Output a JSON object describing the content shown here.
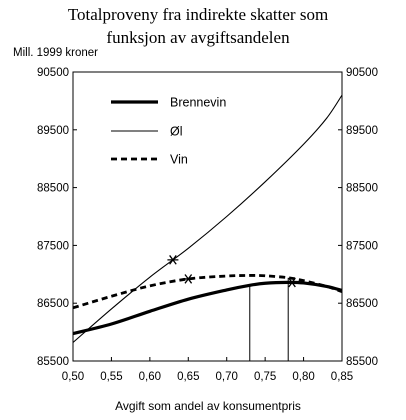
{
  "chart_data": {
    "type": "line",
    "title_lines": [
      "Totalproveny fra indirekte skatter som",
      "funksjon av avgiftsandelen"
    ],
    "ylabel": "Mill. 1999 kroner",
    "xlabel": "Avgift som andel av konsumentpris",
    "xlim": [
      0.5,
      0.85
    ],
    "ylim": [
      85500,
      90500
    ],
    "x_ticks": [
      "0,50",
      "0,55",
      "0,60",
      "0,65",
      "0,70",
      "0,75",
      "0,80",
      "0,85"
    ],
    "y_ticks": [
      "85500",
      "86500",
      "87500",
      "88500",
      "89500",
      "90500"
    ],
    "legend_position": "top-left",
    "series": [
      {
        "name": "Brennevin",
        "style": "thick",
        "x": [
          0.5,
          0.55,
          0.6,
          0.65,
          0.7,
          0.73,
          0.75,
          0.78,
          0.8,
          0.83,
          0.85
        ],
        "y": [
          85975,
          86140,
          86360,
          86570,
          86730,
          86810,
          86845,
          86860,
          86850,
          86790,
          86720
        ],
        "marker_x": 0.785,
        "drop_line_x": 0.73
      },
      {
        "name": "Øl",
        "style": "thin",
        "x": [
          0.5,
          0.55,
          0.6,
          0.65,
          0.7,
          0.75,
          0.8,
          0.83,
          0.85
        ],
        "y": [
          85820,
          86400,
          86950,
          87450,
          88000,
          88600,
          89250,
          89700,
          90100
        ],
        "marker_x": 0.63
      },
      {
        "name": "Vin",
        "style": "dashed",
        "x": [
          0.5,
          0.55,
          0.6,
          0.65,
          0.7,
          0.73,
          0.75,
          0.78,
          0.8,
          0.83,
          0.85
        ],
        "y": [
          86420,
          86620,
          86800,
          86920,
          86970,
          86980,
          86975,
          86940,
          86890,
          86790,
          86700
        ],
        "marker_x": 0.65,
        "drop_line_x": 0.78
      }
    ]
  }
}
